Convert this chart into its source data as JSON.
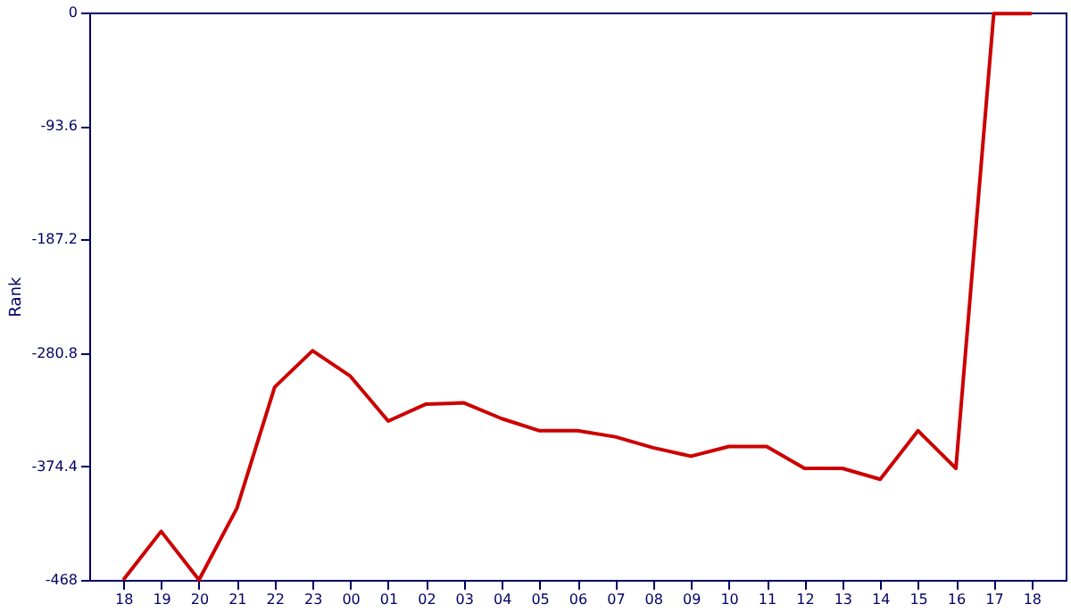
{
  "chart_data": {
    "type": "line",
    "ylabel": "Rank",
    "categories": [
      "18",
      "19",
      "20",
      "21",
      "22",
      "23",
      "00",
      "01",
      "02",
      "03",
      "04",
      "05",
      "06",
      "07",
      "08",
      "09",
      "10",
      "11",
      "12",
      "13",
      "14",
      "15",
      "16",
      "17",
      "18"
    ],
    "series": [
      {
        "color": "#cc0000",
        "values": [
          -468,
          -428,
          -468,
          -409,
          -309,
          -279,
          -300,
          -337,
          -323,
          -322,
          -335,
          -345,
          -345,
          -350,
          -359,
          -366,
          -358,
          -358,
          -376,
          -376,
          -385,
          -345,
          -376,
          -1,
          -1
        ]
      }
    ],
    "ylim": [
      -468,
      0
    ],
    "yticks": [
      -468,
      -374.4,
      -280.8,
      -187.2,
      -93.6,
      0
    ],
    "grid": false,
    "marker": "none",
    "line_style": "solid"
  }
}
